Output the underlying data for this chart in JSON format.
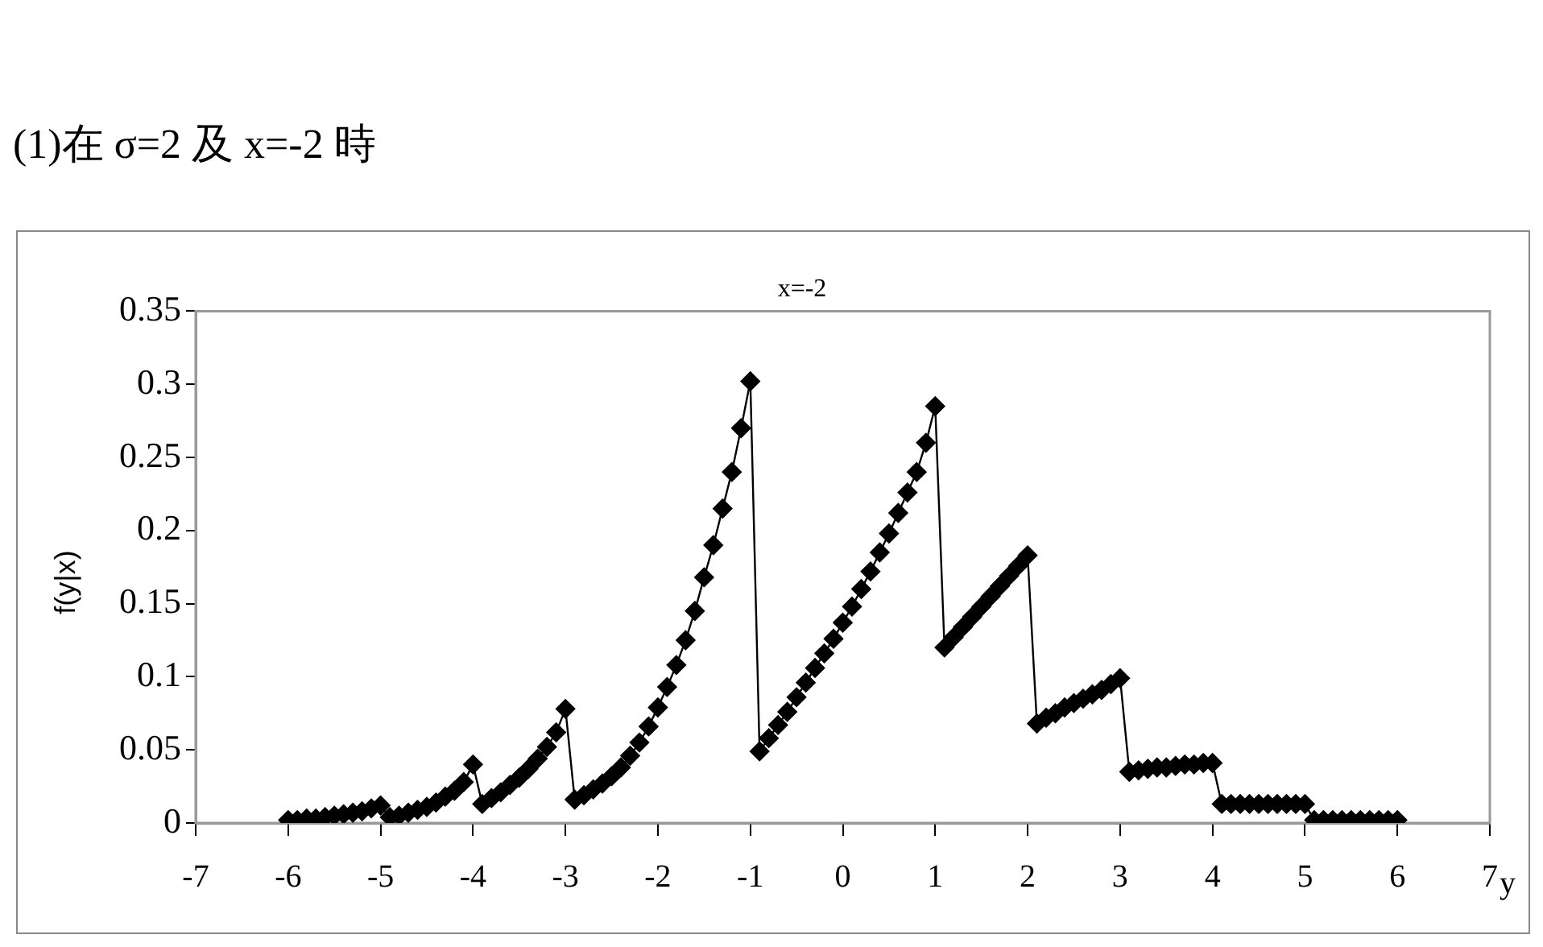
{
  "chart_data": {
    "type": "line",
    "title": "x=-2",
    "xlabel": "y",
    "ylabel": "f(y|x)",
    "annotations": [
      "(1)在 σ=2 及 x=-2 時"
    ],
    "x": [
      -6.0,
      -5.9,
      -5.8,
      -5.7,
      -5.6,
      -5.5,
      -5.4,
      -5.3,
      -5.2,
      -5.1,
      -5.0,
      -4.9,
      -4.8,
      -4.7,
      -4.6,
      -4.5,
      -4.4,
      -4.3,
      -4.2,
      -4.1,
      -4.0,
      -3.9,
      -3.8,
      -3.7,
      -3.6,
      -3.5,
      -3.4,
      -3.3,
      -3.2,
      -3.1,
      -3.0,
      -2.9,
      -2.8,
      -2.7,
      -2.6,
      -2.5,
      -2.4,
      -2.3,
      -2.2,
      -2.1,
      -2.0,
      -1.9,
      -1.8,
      -1.7,
      -1.6,
      -1.5,
      -1.4,
      -1.3,
      -1.2,
      -1.1,
      -1.0,
      -0.9,
      -0.8,
      -0.7,
      -0.6,
      -0.5,
      -0.4,
      -0.3,
      -0.2,
      -0.1,
      0.0,
      0.1,
      0.2,
      0.3,
      0.4,
      0.5,
      0.6,
      0.7,
      0.8,
      0.9,
      1.0,
      1.1,
      1.2,
      1.3,
      1.4,
      1.5,
      1.6,
      1.7,
      1.8,
      1.9,
      2.0,
      2.1,
      2.2,
      2.3,
      2.4,
      2.5,
      2.6,
      2.7,
      2.8,
      2.9,
      3.0,
      3.1,
      3.2,
      3.3,
      3.4,
      3.5,
      3.6,
      3.7,
      3.8,
      3.9,
      4.0,
      4.1,
      4.2,
      4.3,
      4.4,
      4.5,
      4.6,
      4.7,
      4.8,
      4.9,
      5.0,
      5.1,
      5.2,
      5.3,
      5.4,
      5.5,
      5.6,
      5.7,
      5.8,
      5.9,
      6.0
    ],
    "series": [
      {
        "color": "#000000",
        "values": [
          0.002,
          0.002,
          0.003,
          0.003,
          0.004,
          0.005,
          0.006,
          0.007,
          0.008,
          0.01,
          0.012,
          0.004,
          0.005,
          0.007,
          0.009,
          0.011,
          0.014,
          0.018,
          0.022,
          0.028,
          0.04,
          0.013,
          0.017,
          0.021,
          0.026,
          0.031,
          0.037,
          0.044,
          0.052,
          0.062,
          0.078,
          0.016,
          0.019,
          0.023,
          0.027,
          0.032,
          0.038,
          0.046,
          0.055,
          0.066,
          0.079,
          0.093,
          0.108,
          0.125,
          0.145,
          0.168,
          0.19,
          0.215,
          0.24,
          0.27,
          0.302,
          0.049,
          0.058,
          0.067,
          0.076,
          0.086,
          0.096,
          0.106,
          0.116,
          0.126,
          0.137,
          0.148,
          0.16,
          0.172,
          0.185,
          0.198,
          0.212,
          0.226,
          0.24,
          0.26,
          0.285,
          0.12,
          0.127,
          0.134,
          0.141,
          0.148,
          0.155,
          0.162,
          0.169,
          0.176,
          0.183,
          0.068,
          0.072,
          0.075,
          0.079,
          0.082,
          0.085,
          0.088,
          0.091,
          0.095,
          0.099,
          0.035,
          0.036,
          0.037,
          0.038,
          0.038,
          0.039,
          0.04,
          0.04,
          0.041,
          0.041,
          0.013,
          0.013,
          0.013,
          0.013,
          0.013,
          0.013,
          0.013,
          0.013,
          0.013,
          0.013,
          0.002,
          0.002,
          0.002,
          0.002,
          0.002,
          0.002,
          0.002,
          0.002,
          0.002,
          0.002
        ]
      }
    ],
    "xlim": [
      -7,
      7
    ],
    "xticks": [
      -7,
      -6,
      -5,
      -4,
      -3,
      -2,
      -1,
      0,
      1,
      2,
      3,
      4,
      5,
      6,
      7
    ],
    "ylim": [
      0,
      0.35
    ],
    "yticks": [
      0,
      0.05,
      0.1,
      0.15,
      0.2,
      0.25,
      0.3,
      0.35
    ],
    "grid": false,
    "legend": false,
    "marker": "diamond",
    "line_style": "solid"
  }
}
